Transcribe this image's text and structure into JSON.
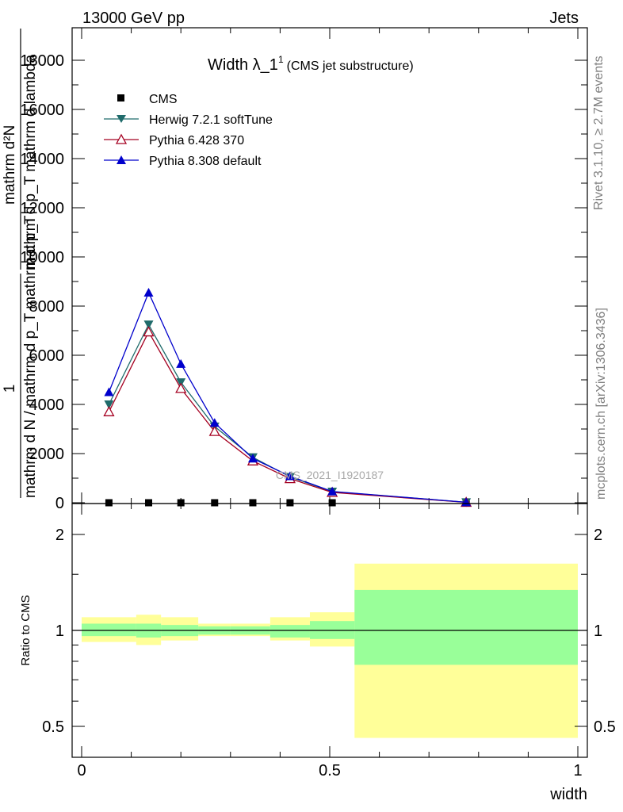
{
  "header": {
    "left": "13000 GeV pp",
    "right": "Jets"
  },
  "side_labels": {
    "rivet": "Rivet 3.1.10, ≥ 2.7M events",
    "mcplots": "mcplots.cern.ch [arXiv:1306.3436]"
  },
  "chart_data": [
    {
      "type": "line",
      "title_main": "Width λ_1",
      "title_sup": "1",
      "title_sub": "(CMS jet substructure)",
      "watermark": "CMS_2021_I1920187",
      "ylabel_parts": {
        "numerator": "1",
        "denominator": "mathrm d N / mathrm d p_T mathrm d p_T",
        "right_numerator": "mathrm d²N",
        "right_denominator": "mathrm d p_T mathrm d lambda"
      },
      "ylim": [
        0,
        18000
      ],
      "y_ticks": [
        0,
        2000,
        4000,
        6000,
        8000,
        10000,
        12000,
        14000,
        16000,
        18000
      ],
      "y_tick_labels": [
        "0",
        "2000",
        "4000",
        "6000",
        "8000",
        "10000",
        "12000",
        "14000",
        "16000",
        "18000"
      ],
      "xlim": [
        0,
        1
      ],
      "x": [
        0.055,
        0.135,
        0.2,
        0.268,
        0.345,
        0.42,
        0.505,
        0.775
      ],
      "x_edges": [
        0.0,
        0.11,
        0.16,
        0.235,
        0.3,
        0.38,
        0.46,
        0.55,
        1.0
      ],
      "legend": [
        "CMS",
        "Herwig 7.2.1 softTune",
        "Pythia 6.428 370",
        "Pythia 8.308 default"
      ],
      "legend_position": "top-left",
      "series": [
        {
          "name": "CMS",
          "color": "#000000",
          "marker": "square",
          "values": [
            0,
            0,
            0,
            0,
            0,
            0,
            0,
            0
          ]
        },
        {
          "name": "Herwig 7.2.1 softTune",
          "color": "#1f6b6b",
          "marker": "triangle-down",
          "values": [
            4000,
            7250,
            4900,
            3100,
            1850,
            1050,
            450,
            20
          ]
        },
        {
          "name": "Pythia 6.428 370",
          "color": "#a50021",
          "marker": "triangle-up-open",
          "values": [
            3700,
            6950,
            4650,
            2900,
            1700,
            980,
            420,
            15
          ]
        },
        {
          "name": "Pythia 8.308 default",
          "color": "#0000cc",
          "marker": "triangle-up",
          "values": [
            4500,
            8550,
            5650,
            3250,
            1800,
            1080,
            460,
            20
          ]
        }
      ]
    },
    {
      "type": "area",
      "ylabel": "Ratio to CMS",
      "xlabel": "width",
      "ylim": [
        0.4,
        2.3
      ],
      "y_ticks": [
        0.5,
        1,
        2
      ],
      "y_tick_labels": [
        "0.5",
        "1",
        "2"
      ],
      "x_ticks": [
        0,
        0.5,
        1
      ],
      "x_tick_labels": [
        "0",
        "0.5",
        "1"
      ],
      "reference_line": 1,
      "x_edges": [
        0.0,
        0.11,
        0.16,
        0.235,
        0.3,
        0.38,
        0.46,
        0.55,
        1.0
      ],
      "bands": [
        {
          "name": "total",
          "color": "#ffff99",
          "lower": [
            0.92,
            0.9,
            0.93,
            0.96,
            0.96,
            0.93,
            0.89,
            0.46
          ],
          "upper": [
            1.1,
            1.12,
            1.1,
            1.05,
            1.05,
            1.1,
            1.14,
            1.62
          ]
        },
        {
          "name": "stat",
          "color": "#99ff99",
          "lower": [
            0.96,
            0.95,
            0.96,
            0.97,
            0.97,
            0.95,
            0.94,
            0.78
          ],
          "upper": [
            1.05,
            1.05,
            1.04,
            1.03,
            1.03,
            1.04,
            1.07,
            1.34
          ]
        }
      ]
    }
  ]
}
